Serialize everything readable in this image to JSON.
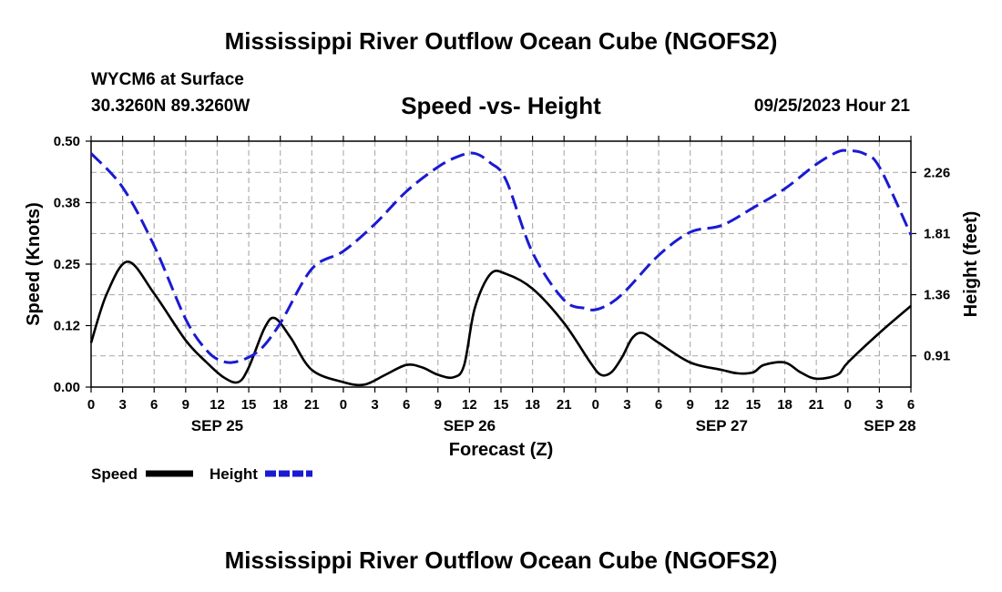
{
  "page": {
    "title": "Mississippi River Outflow Ocean Cube (NGOFS2)",
    "station": "WYCM6 at Surface",
    "coords": "30.3260N  89.3260W",
    "subtitle": "Speed -vs- Height",
    "datetime": "09/25/2023 Hour 21",
    "bottom_title": "Mississippi River Outflow Ocean Cube (NGOFS2)"
  },
  "chart_data": {
    "type": "line",
    "title": "Speed -vs- Height",
    "xlabel": "Forecast (Z)",
    "ylabel_left": "Speed (Knots)",
    "ylabel_right": "Height (feet)",
    "x_unit": "hours since SEP 25 00Z",
    "xlim": [
      0,
      78
    ],
    "ylim_left": [
      0,
      0.5
    ],
    "ylim_right": [
      0.68,
      2.49
    ],
    "grid": true,
    "x_ticks": [
      {
        "x": 0,
        "label": "0"
      },
      {
        "x": 3,
        "label": "3"
      },
      {
        "x": 6,
        "label": "6"
      },
      {
        "x": 9,
        "label": "9"
      },
      {
        "x": 12,
        "label": "12"
      },
      {
        "x": 15,
        "label": "15"
      },
      {
        "x": 18,
        "label": "18"
      },
      {
        "x": 21,
        "label": "21"
      },
      {
        "x": 24,
        "label": "0"
      },
      {
        "x": 27,
        "label": "3"
      },
      {
        "x": 30,
        "label": "6"
      },
      {
        "x": 33,
        "label": "9"
      },
      {
        "x": 36,
        "label": "12"
      },
      {
        "x": 39,
        "label": "15"
      },
      {
        "x": 42,
        "label": "18"
      },
      {
        "x": 45,
        "label": "21"
      },
      {
        "x": 48,
        "label": "0"
      },
      {
        "x": 51,
        "label": "3"
      },
      {
        "x": 54,
        "label": "6"
      },
      {
        "x": 57,
        "label": "9"
      },
      {
        "x": 60,
        "label": "12"
      },
      {
        "x": 63,
        "label": "15"
      },
      {
        "x": 66,
        "label": "18"
      },
      {
        "x": 69,
        "label": "21"
      },
      {
        "x": 72,
        "label": "0"
      },
      {
        "x": 75,
        "label": "3"
      },
      {
        "x": 78,
        "label": "6"
      }
    ],
    "day_labels": [
      {
        "x": 12,
        "label": "SEP 25"
      },
      {
        "x": 36,
        "label": "SEP 26"
      },
      {
        "x": 60,
        "label": "SEP 27"
      },
      {
        "x": 76,
        "label": "SEP 28"
      }
    ],
    "left_ticks": [
      {
        "v": 0.0,
        "label": "0.00"
      },
      {
        "v": 0.125,
        "label": "0.12"
      },
      {
        "v": 0.25,
        "label": "0.25"
      },
      {
        "v": 0.375,
        "label": "0.38"
      },
      {
        "v": 0.5,
        "label": "0.50"
      }
    ],
    "right_ticks": [
      {
        "v": 0.91,
        "label": "0.91"
      },
      {
        "v": 1.36,
        "label": "1.36"
      },
      {
        "v": 1.81,
        "label": "1.81"
      },
      {
        "v": 2.26,
        "label": "2.26"
      }
    ],
    "series": [
      {
        "name": "Speed",
        "axis": "left",
        "color": "#000000",
        "dash": false,
        "x": [
          0,
          1.5,
          3.5,
          6,
          9,
          11,
          12.6,
          14,
          15,
          16.5,
          17.5,
          19,
          21,
          24,
          26,
          28,
          30,
          31.5,
          33,
          34.5,
          35.5,
          36.5,
          38,
          39.5,
          42,
          45,
          47.5,
          48.5,
          49.5,
          50.5,
          51.5,
          52.5,
          54,
          57,
          60,
          61.5,
          63,
          64,
          66,
          67.5,
          69,
          71,
          72,
          75,
          78
        ],
        "values": [
          0.09,
          0.19,
          0.255,
          0.19,
          0.095,
          0.05,
          0.02,
          0.01,
          0.04,
          0.12,
          0.14,
          0.1,
          0.035,
          0.01,
          0.005,
          0.025,
          0.045,
          0.04,
          0.025,
          0.02,
          0.045,
          0.16,
          0.23,
          0.23,
          0.2,
          0.13,
          0.05,
          0.025,
          0.03,
          0.06,
          0.1,
          0.11,
          0.09,
          0.05,
          0.035,
          0.028,
          0.03,
          0.045,
          0.05,
          0.03,
          0.017,
          0.025,
          0.05,
          0.11,
          0.165
        ]
      },
      {
        "name": "Height",
        "axis": "right",
        "color": "#1a1ad2",
        "dash": true,
        "x": [
          0,
          3,
          6,
          9,
          11,
          12.5,
          14,
          16,
          18,
          21,
          24,
          27,
          30,
          33,
          35,
          36.5,
          38,
          39.5,
          42,
          45,
          47,
          48,
          49.5,
          51,
          54,
          57,
          60,
          63,
          66,
          69,
          71,
          72,
          73.5,
          75,
          78
        ],
        "values": [
          2.4,
          2.15,
          1.72,
          1.18,
          0.95,
          0.87,
          0.87,
          0.95,
          1.15,
          1.55,
          1.68,
          1.88,
          2.12,
          2.3,
          2.38,
          2.4,
          2.33,
          2.2,
          1.67,
          1.32,
          1.26,
          1.25,
          1.3,
          1.4,
          1.65,
          1.82,
          1.87,
          2.0,
          2.14,
          2.32,
          2.41,
          2.42,
          2.4,
          2.3,
          1.8
        ]
      }
    ],
    "legend": {
      "placement": "bottom-left",
      "items": [
        {
          "label": "Speed",
          "color": "#000000",
          "dash": false
        },
        {
          "label": "Height",
          "color": "#1a1ad2",
          "dash": true
        }
      ]
    }
  }
}
